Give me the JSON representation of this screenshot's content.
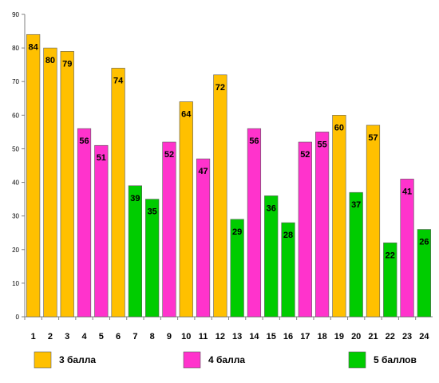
{
  "chart_data": {
    "type": "bar",
    "ylim": [
      0,
      90
    ],
    "yticks": [
      "0",
      "10",
      "20",
      "30",
      "40",
      "50",
      "60",
      "70",
      "80",
      "90"
    ],
    "categories": [
      "1",
      "2",
      "3",
      "4",
      "5",
      "6",
      "7",
      "8",
      "9",
      "10",
      "11",
      "12",
      "13",
      "14",
      "15",
      "16",
      "17",
      "18",
      "19",
      "20",
      "21",
      "22",
      "23",
      "24"
    ],
    "values": [
      84,
      80,
      79,
      56,
      51,
      74,
      39,
      35,
      52,
      64,
      47,
      72,
      29,
      56,
      36,
      28,
      52,
      55,
      60,
      37,
      57,
      22,
      41,
      26
    ],
    "groups": [
      3,
      3,
      3,
      4,
      4,
      3,
      5,
      5,
      4,
      3,
      4,
      3,
      5,
      4,
      5,
      5,
      4,
      4,
      3,
      5,
      3,
      5,
      4,
      5
    ],
    "legend": [
      {
        "group": 3,
        "label": "3 балла",
        "color": "#FFC000"
      },
      {
        "group": 4,
        "label": "4 балла",
        "color": "#FF33CC"
      },
      {
        "group": 5,
        "label": "5 баллов",
        "color": "#00CC00"
      }
    ],
    "grid": false,
    "legend_position": "bottom"
  }
}
